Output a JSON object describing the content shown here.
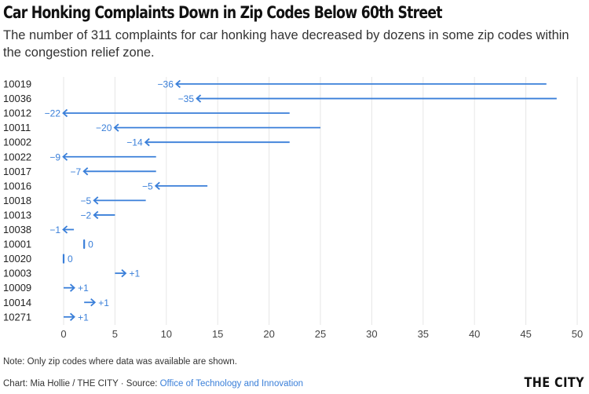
{
  "header": {
    "title": "Car Honking Complaints Down in Zip Codes Below 60th Street",
    "subtitle_line1": "The number of 311 complaints for car honking have decreased by dozens in some zip codes within",
    "subtitle_line2": "the congestion relief zone."
  },
  "footer": {
    "note": "Note: Only zip codes where data was available are shown.",
    "credit": "Chart: Mia Hollie / THE CITY · Source: ",
    "source_link": "Office of Technology and Innovation",
    "brand": "THE CITY"
  },
  "colors": {
    "arrow": "#3a7fd9",
    "grid": "#e6e6e6",
    "text": "#222222"
  },
  "chart_data": {
    "type": "arrow",
    "xlim": [
      -2,
      50
    ],
    "xticks": [
      0,
      5,
      10,
      15,
      20,
      25,
      30,
      35,
      40,
      45,
      50
    ],
    "grid": true,
    "rows": [
      {
        "zip": "10019",
        "start": 47,
        "end": 11,
        "label": "−36"
      },
      {
        "zip": "10036",
        "start": 48,
        "end": 13,
        "label": "−35"
      },
      {
        "zip": "10012",
        "start": 22,
        "end": 0,
        "label": "−22"
      },
      {
        "zip": "10011",
        "start": 25,
        "end": 5,
        "label": "−20"
      },
      {
        "zip": "10002",
        "start": 22,
        "end": 8,
        "label": "−14"
      },
      {
        "zip": "10022",
        "start": 9,
        "end": 0,
        "label": "−9"
      },
      {
        "zip": "10017",
        "start": 9,
        "end": 2,
        "label": "−7"
      },
      {
        "zip": "10016",
        "start": 14,
        "end": 9,
        "label": "−5"
      },
      {
        "zip": "10018",
        "start": 8,
        "end": 3,
        "label": "−5"
      },
      {
        "zip": "10013",
        "start": 5,
        "end": 3,
        "label": "−2"
      },
      {
        "zip": "10038",
        "start": 1,
        "end": 0,
        "label": "−1"
      },
      {
        "zip": "10001",
        "start": 2,
        "end": 2,
        "label": "0"
      },
      {
        "zip": "10020",
        "start": 0,
        "end": 0,
        "label": "0"
      },
      {
        "zip": "10003",
        "start": 5,
        "end": 6,
        "label": "+1"
      },
      {
        "zip": "10009",
        "start": 0,
        "end": 1,
        "label": "+1"
      },
      {
        "zip": "10014",
        "start": 2,
        "end": 3,
        "label": "+1"
      },
      {
        "zip": "10271",
        "start": 0,
        "end": 1,
        "label": "+1"
      }
    ]
  }
}
